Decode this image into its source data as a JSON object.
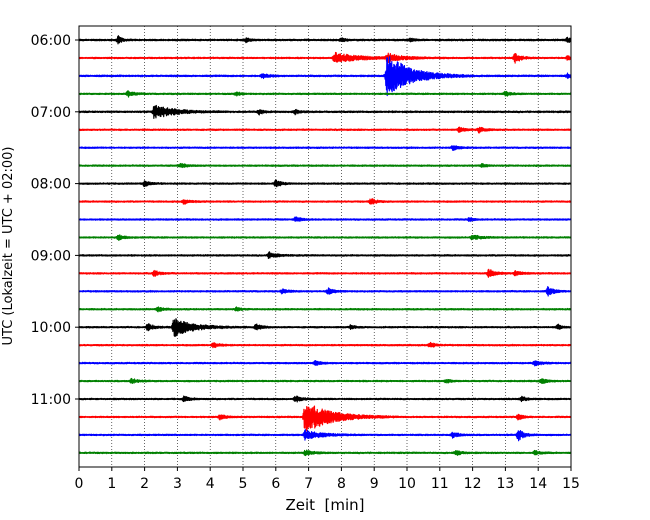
{
  "chart_data": {
    "type": "line",
    "subtype": "helicorder seismogram",
    "xlabel": "Zeit  [min]",
    "ylabel": "UTC (Lokalzeit = UTC + 02:00)",
    "xlim": [
      0,
      15
    ],
    "x_ticks": [
      0,
      1,
      2,
      3,
      4,
      5,
      6,
      7,
      8,
      9,
      10,
      11,
      12,
      13,
      14,
      15
    ],
    "y_ticks": [
      "06:00",
      "07:00",
      "08:00",
      "09:00",
      "10:00",
      "11:00"
    ],
    "y_tick_rows": [
      0,
      4,
      8,
      12,
      16,
      20
    ],
    "line_interval_minutes": 15,
    "line_colors": [
      "#000000",
      "#ff0000",
      "#0000ff",
      "#008000"
    ],
    "vertical_grid": "dotted, every minute",
    "traces": [
      {
        "start": "06:00",
        "color": "#000000",
        "noise": 0.9,
        "events": [
          {
            "t": 1.2,
            "amp": 3.5,
            "dur": 0.2
          },
          {
            "t": 5.1,
            "amp": 2.2,
            "dur": 0.2
          },
          {
            "t": 8.0,
            "amp": 2.4,
            "dur": 0.2
          },
          {
            "t": 10.1,
            "amp": 2.0,
            "dur": 0.2
          },
          {
            "t": 14.9,
            "amp": 2.6,
            "dur": 0.2
          }
        ]
      },
      {
        "start": "06:15",
        "color": "#ff0000",
        "noise": 0.8,
        "events": [
          {
            "t": 7.8,
            "amp": 5.5,
            "dur": 1.2
          },
          {
            "t": 9.4,
            "amp": 4.0,
            "dur": 0.8
          },
          {
            "t": 13.3,
            "amp": 5.0,
            "dur": 0.3
          },
          {
            "t": 14.9,
            "amp": 2.0,
            "dur": 0.2
          }
        ]
      },
      {
        "start": "06:30",
        "color": "#0000ff",
        "noise": 0.9,
        "events": [
          {
            "t": 5.6,
            "amp": 2.5,
            "dur": 0.3
          },
          {
            "t": 9.4,
            "amp": 22.0,
            "dur": 1.2
          },
          {
            "t": 14.9,
            "amp": 2.5,
            "dur": 0.2
          }
        ]
      },
      {
        "start": "06:45",
        "color": "#008000",
        "noise": 0.8,
        "events": [
          {
            "t": 1.5,
            "amp": 3.0,
            "dur": 0.3
          },
          {
            "t": 4.8,
            "amp": 2.0,
            "dur": 0.2
          },
          {
            "t": 13.0,
            "amp": 2.2,
            "dur": 0.3
          }
        ]
      },
      {
        "start": "07:00",
        "color": "#000000",
        "noise": 0.9,
        "events": [
          {
            "t": 2.3,
            "amp": 7.0,
            "dur": 1.0
          },
          {
            "t": 5.5,
            "amp": 2.5,
            "dur": 0.2
          },
          {
            "t": 6.6,
            "amp": 2.5,
            "dur": 0.2
          }
        ]
      },
      {
        "start": "07:15",
        "color": "#ff0000",
        "noise": 0.8,
        "events": [
          {
            "t": 11.6,
            "amp": 2.5,
            "dur": 0.3
          },
          {
            "t": 12.2,
            "amp": 2.8,
            "dur": 0.3
          }
        ]
      },
      {
        "start": "07:30",
        "color": "#0000ff",
        "noise": 0.8,
        "events": [
          {
            "t": 11.4,
            "amp": 2.5,
            "dur": 0.3
          }
        ]
      },
      {
        "start": "07:45",
        "color": "#008000",
        "noise": 0.8,
        "events": [
          {
            "t": 3.1,
            "amp": 2.2,
            "dur": 0.3
          },
          {
            "t": 12.3,
            "amp": 2.0,
            "dur": 0.2
          }
        ]
      },
      {
        "start": "08:00",
        "color": "#000000",
        "noise": 0.8,
        "events": [
          {
            "t": 2.0,
            "amp": 2.8,
            "dur": 0.3
          },
          {
            "t": 6.0,
            "amp": 3.2,
            "dur": 0.3
          }
        ]
      },
      {
        "start": "08:15",
        "color": "#ff0000",
        "noise": 0.8,
        "events": [
          {
            "t": 3.2,
            "amp": 2.5,
            "dur": 0.3
          },
          {
            "t": 8.9,
            "amp": 2.8,
            "dur": 0.3
          }
        ]
      },
      {
        "start": "08:30",
        "color": "#0000ff",
        "noise": 0.8,
        "events": [
          {
            "t": 6.6,
            "amp": 2.5,
            "dur": 0.3
          },
          {
            "t": 11.9,
            "amp": 2.0,
            "dur": 0.2
          }
        ]
      },
      {
        "start": "08:45",
        "color": "#008000",
        "noise": 0.8,
        "events": [
          {
            "t": 1.2,
            "amp": 2.5,
            "dur": 0.3
          },
          {
            "t": 12.0,
            "amp": 2.5,
            "dur": 0.4
          }
        ]
      },
      {
        "start": "09:00",
        "color": "#000000",
        "noise": 0.8,
        "events": [
          {
            "t": 5.8,
            "amp": 3.0,
            "dur": 0.4
          }
        ]
      },
      {
        "start": "09:15",
        "color": "#ff0000",
        "noise": 0.8,
        "events": [
          {
            "t": 2.3,
            "amp": 2.8,
            "dur": 0.3
          },
          {
            "t": 12.5,
            "amp": 4.5,
            "dur": 0.3
          },
          {
            "t": 13.3,
            "amp": 2.5,
            "dur": 0.3
          }
        ]
      },
      {
        "start": "09:30",
        "color": "#0000ff",
        "noise": 0.8,
        "events": [
          {
            "t": 6.2,
            "amp": 2.2,
            "dur": 0.3
          },
          {
            "t": 7.6,
            "amp": 3.0,
            "dur": 0.3
          },
          {
            "t": 14.3,
            "amp": 4.5,
            "dur": 0.3
          }
        ]
      },
      {
        "start": "09:45",
        "color": "#008000",
        "noise": 0.8,
        "events": [
          {
            "t": 2.4,
            "amp": 2.5,
            "dur": 0.3
          },
          {
            "t": 4.8,
            "amp": 2.0,
            "dur": 0.2
          }
        ]
      },
      {
        "start": "10:00",
        "color": "#000000",
        "noise": 0.8,
        "events": [
          {
            "t": 2.1,
            "amp": 3.5,
            "dur": 0.3
          },
          {
            "t": 2.9,
            "amp": 9.0,
            "dur": 1.0
          },
          {
            "t": 5.4,
            "amp": 3.0,
            "dur": 0.3
          },
          {
            "t": 8.3,
            "amp": 2.5,
            "dur": 0.2
          },
          {
            "t": 14.6,
            "amp": 2.5,
            "dur": 0.2
          }
        ]
      },
      {
        "start": "10:15",
        "color": "#ff0000",
        "noise": 0.8,
        "events": [
          {
            "t": 4.1,
            "amp": 2.8,
            "dur": 0.3
          },
          {
            "t": 10.7,
            "amp": 2.5,
            "dur": 0.3
          }
        ]
      },
      {
        "start": "10:30",
        "color": "#0000ff",
        "noise": 0.8,
        "events": [
          {
            "t": 7.2,
            "amp": 2.5,
            "dur": 0.3
          },
          {
            "t": 13.9,
            "amp": 2.8,
            "dur": 0.3
          }
        ]
      },
      {
        "start": "10:45",
        "color": "#008000",
        "noise": 0.8,
        "events": [
          {
            "t": 1.6,
            "amp": 2.5,
            "dur": 0.3
          },
          {
            "t": 11.2,
            "amp": 2.0,
            "dur": 0.2
          },
          {
            "t": 14.1,
            "amp": 2.5,
            "dur": 0.3
          }
        ]
      },
      {
        "start": "11:00",
        "color": "#000000",
        "noise": 0.8,
        "events": [
          {
            "t": 3.2,
            "amp": 2.5,
            "dur": 0.3
          },
          {
            "t": 6.6,
            "amp": 3.0,
            "dur": 0.3
          },
          {
            "t": 13.5,
            "amp": 2.2,
            "dur": 0.3
          }
        ]
      },
      {
        "start": "11:15",
        "color": "#ff0000",
        "noise": 0.8,
        "events": [
          {
            "t": 4.3,
            "amp": 2.5,
            "dur": 0.3
          },
          {
            "t": 6.9,
            "amp": 16.0,
            "dur": 1.3
          },
          {
            "t": 13.4,
            "amp": 3.5,
            "dur": 0.2
          }
        ]
      },
      {
        "start": "11:30",
        "color": "#0000ff",
        "noise": 0.8,
        "events": [
          {
            "t": 6.9,
            "amp": 5.0,
            "dur": 0.8
          },
          {
            "t": 11.4,
            "amp": 3.0,
            "dur": 0.3
          },
          {
            "t": 13.4,
            "amp": 5.5,
            "dur": 0.3
          }
        ]
      },
      {
        "start": "11:45",
        "color": "#008000",
        "noise": 0.8,
        "events": [
          {
            "t": 6.9,
            "amp": 2.5,
            "dur": 0.4
          },
          {
            "t": 11.5,
            "amp": 2.5,
            "dur": 0.3
          },
          {
            "t": 13.9,
            "amp": 2.0,
            "dur": 0.3
          }
        ]
      }
    ]
  }
}
